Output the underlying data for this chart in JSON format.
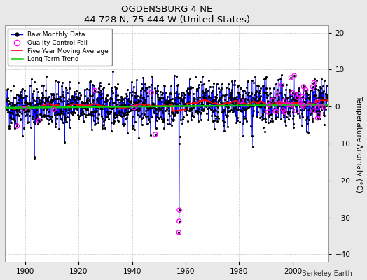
{
  "title": "OGDENSBURG 4 NE",
  "subtitle": "44.728 N, 75.444 W (United States)",
  "ylabel": "Temperature Anomaly (°C)",
  "credit": "Berkeley Earth",
  "year_start": 1893,
  "year_end": 2013,
  "ylim": [
    -42,
    22
  ],
  "yticks": [
    -40,
    -30,
    -20,
    -10,
    0,
    10,
    20
  ],
  "xticks": [
    1900,
    1920,
    1940,
    1960,
    1980,
    2000
  ],
  "background_color": "#e8e8e8",
  "plot_bg_color": "#ffffff",
  "raw_line_color": "#0000ff",
  "raw_marker_color": "#000000",
  "moving_avg_color": "#ff0000",
  "trend_color": "#00cc00",
  "qc_fail_color": "#ff00ff",
  "seed": 42
}
